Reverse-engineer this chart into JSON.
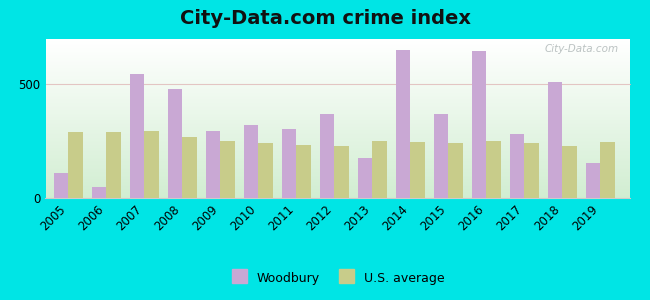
{
  "title": "City-Data.com crime index",
  "years": [
    2005,
    2006,
    2007,
    2008,
    2009,
    2010,
    2011,
    2012,
    2013,
    2014,
    2015,
    2016,
    2017,
    2018,
    2019
  ],
  "woodbury": [
    110,
    50,
    545,
    480,
    295,
    320,
    305,
    370,
    175,
    650,
    370,
    645,
    280,
    510,
    155
  ],
  "us_average": [
    290,
    290,
    295,
    270,
    250,
    240,
    235,
    230,
    250,
    245,
    240,
    250,
    240,
    230,
    245
  ],
  "woodbury_color": "#c9a8d4",
  "us_avg_color": "#c8cc8a",
  "bg_color": "#00e5e5",
  "ylim": [
    0,
    700
  ],
  "yticks": [
    0,
    500
  ],
  "bar_width": 0.38,
  "legend_woodbury": "Woodbury",
  "legend_us": "U.S. average",
  "watermark": "City-Data.com",
  "title_fontsize": 14,
  "tick_fontsize": 8.5,
  "xlim_left": 2004.4,
  "xlim_right": 2019.8
}
